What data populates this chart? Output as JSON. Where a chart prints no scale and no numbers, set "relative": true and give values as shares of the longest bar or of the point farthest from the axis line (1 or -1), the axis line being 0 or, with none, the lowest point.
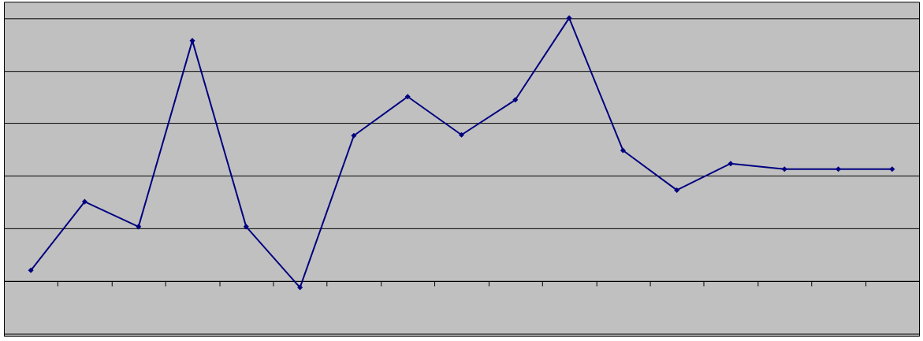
{
  "chart_data": {
    "type": "line",
    "relative": true,
    "categories": [
      null,
      null,
      null,
      null,
      null,
      null,
      null,
      null,
      null,
      null,
      null,
      null,
      null,
      null,
      null,
      null,
      null
    ],
    "series": [
      {
        "color": "#000080",
        "values": [
          0.041,
          0.302,
          0.207,
          0.914,
          0.207,
          -0.024,
          0.553,
          0.701,
          0.556,
          0.689,
          1,
          0.497,
          0.346,
          0.447,
          0.426,
          0.426,
          0.426
        ]
      }
    ],
    "marker": "diamond",
    "line_style": "solid",
    "grid": "y"
  }
}
